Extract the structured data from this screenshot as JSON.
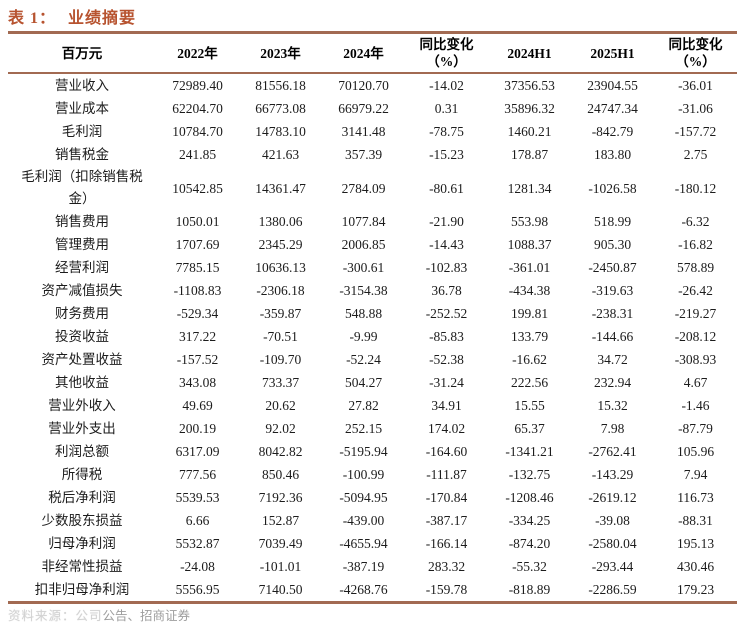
{
  "title": {
    "prefix": "表 1：",
    "text": "业绩摘要"
  },
  "table": {
    "unit_header": "百万元",
    "columns": [
      {
        "label": "2022年",
        "sub": ""
      },
      {
        "label": "2023年",
        "sub": ""
      },
      {
        "label": "2024年",
        "sub": ""
      },
      {
        "label": "同比变化",
        "sub": "（%）"
      },
      {
        "label": "2024H1",
        "sub": ""
      },
      {
        "label": "2025H1",
        "sub": ""
      },
      {
        "label": "同比变化",
        "sub": "（%）"
      }
    ],
    "rows": [
      {
        "label": "营业收入",
        "values": [
          "72989.40",
          "81556.18",
          "70120.70",
          "-14.02",
          "37356.53",
          "23904.55",
          "-36.01"
        ]
      },
      {
        "label": "营业成本",
        "values": [
          "62204.70",
          "66773.08",
          "66979.22",
          "0.31",
          "35896.32",
          "24747.34",
          "-31.06"
        ]
      },
      {
        "label": "毛利润",
        "values": [
          "10784.70",
          "14783.10",
          "3141.48",
          "-78.75",
          "1460.21",
          "-842.79",
          "-157.72"
        ]
      },
      {
        "label": "销售税金",
        "values": [
          "241.85",
          "421.63",
          "357.39",
          "-15.23",
          "178.87",
          "183.80",
          "2.75"
        ]
      },
      {
        "label": "毛利润（扣除销售税金）",
        "values": [
          "10542.85",
          "14361.47",
          "2784.09",
          "-80.61",
          "1281.34",
          "-1026.58",
          "-180.12"
        ]
      },
      {
        "label": "销售费用",
        "values": [
          "1050.01",
          "1380.06",
          "1077.84",
          "-21.90",
          "553.98",
          "518.99",
          "-6.32"
        ]
      },
      {
        "label": "管理费用",
        "values": [
          "1707.69",
          "2345.29",
          "2006.85",
          "-14.43",
          "1088.37",
          "905.30",
          "-16.82"
        ]
      },
      {
        "label": "经营利润",
        "values": [
          "7785.15",
          "10636.13",
          "-300.61",
          "-102.83",
          "-361.01",
          "-2450.87",
          "578.89"
        ]
      },
      {
        "label": "资产减值损失",
        "values": [
          "-1108.83",
          "-2306.18",
          "-3154.38",
          "36.78",
          "-434.38",
          "-319.63",
          "-26.42"
        ]
      },
      {
        "label": "财务费用",
        "values": [
          "-529.34",
          "-359.87",
          "548.88",
          "-252.52",
          "199.81",
          "-238.31",
          "-219.27"
        ]
      },
      {
        "label": "投资收益",
        "values": [
          "317.22",
          "-70.51",
          "-9.99",
          "-85.83",
          "133.79",
          "-144.66",
          "-208.12"
        ]
      },
      {
        "label": "资产处置收益",
        "values": [
          "-157.52",
          "-109.70",
          "-52.24",
          "-52.38",
          "-16.62",
          "34.72",
          "-308.93"
        ]
      },
      {
        "label": "其他收益",
        "values": [
          "343.08",
          "733.37",
          "504.27",
          "-31.24",
          "222.56",
          "232.94",
          "4.67"
        ]
      },
      {
        "label": "营业外收入",
        "values": [
          "49.69",
          "20.62",
          "27.82",
          "34.91",
          "15.55",
          "15.32",
          "-1.46"
        ]
      },
      {
        "label": "营业外支出",
        "values": [
          "200.19",
          "92.02",
          "252.15",
          "174.02",
          "65.37",
          "7.98",
          "-87.79"
        ]
      },
      {
        "label": "利润总额",
        "values": [
          "6317.09",
          "8042.82",
          "-5195.94",
          "-164.60",
          "-1341.21",
          "-2762.41",
          "105.96"
        ]
      },
      {
        "label": "所得税",
        "values": [
          "777.56",
          "850.46",
          "-100.99",
          "-111.87",
          "-132.75",
          "-143.29",
          "7.94"
        ]
      },
      {
        "label": "税后净利润",
        "values": [
          "5539.53",
          "7192.36",
          "-5094.95",
          "-170.84",
          "-1208.46",
          "-2619.12",
          "116.73"
        ]
      },
      {
        "label": "少数股东损益",
        "values": [
          "6.66",
          "152.87",
          "-439.00",
          "-387.17",
          "-334.25",
          "-39.08",
          "-88.31"
        ]
      },
      {
        "label": "归母净利润",
        "values": [
          "5532.87",
          "7039.49",
          "-4655.94",
          "-166.14",
          "-874.20",
          "-2580.04",
          "195.13"
        ]
      },
      {
        "label": "非经常性损益",
        "values": [
          "-24.08",
          "-101.01",
          "-387.19",
          "283.32",
          "-55.32",
          "-293.44",
          "430.46"
        ]
      },
      {
        "label": "扣非归母净利润",
        "values": [
          "5556.95",
          "7140.50",
          "-4268.76",
          "-159.78",
          "-818.89",
          "-2286.59",
          "179.23"
        ]
      }
    ]
  },
  "footer": {
    "source_obscured": "资料来源：公司",
    "source_visible": "公告、招商证券"
  },
  "colors": {
    "c-title": "#b7532f",
    "c-rule": "#a26a52",
    "c-text": "#1c1c1c",
    "c-footer": "#9e9e9e",
    "c-watermark": "#d2d2d2"
  }
}
